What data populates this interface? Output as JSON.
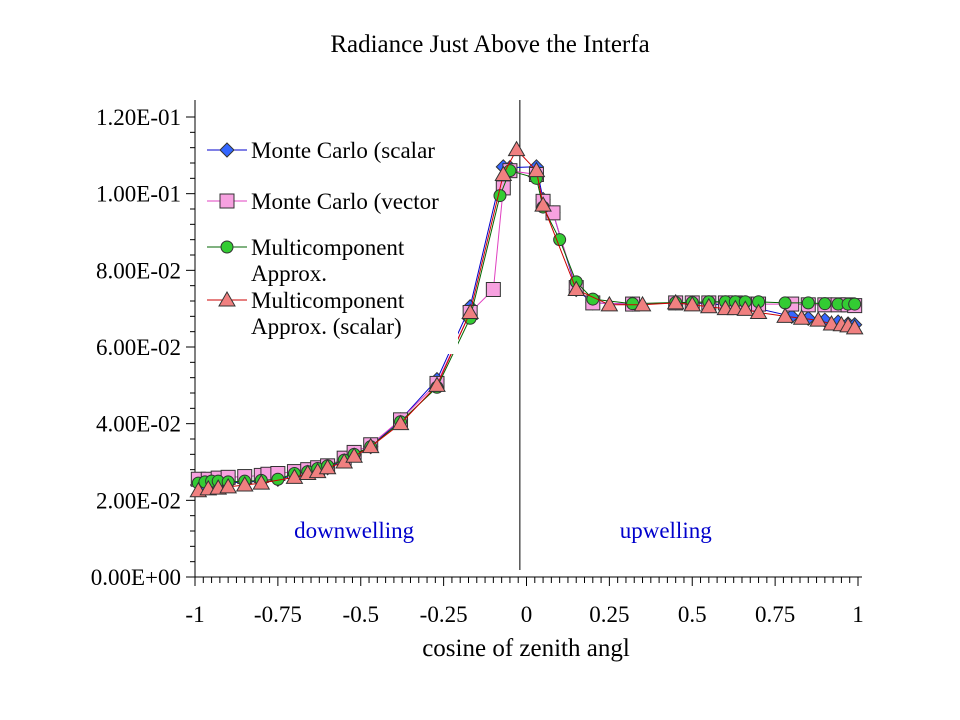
{
  "chart_data": {
    "type": "line",
    "title": "Radiance Just Above the Interfa",
    "xlabel": "cosine of zenith angl",
    "ylabel": "",
    "xlim": [
      -1,
      1
    ],
    "ylim": [
      0,
      0.12
    ],
    "x_ticks": [
      "-1",
      "-0.75",
      "-0.5",
      "-0.25",
      "0",
      "0.25",
      "0.5",
      "0.75",
      "1"
    ],
    "x_tick_values": [
      -1,
      -0.75,
      -0.5,
      -0.25,
      0,
      0.25,
      0.5,
      0.75,
      1
    ],
    "y_ticks": [
      "0.00E+00",
      "2.00E-02",
      "4.00E-02",
      "6.00E-02",
      "8.00E-02",
      "1.00E-01",
      "1.20E-01"
    ],
    "y_tick_values": [
      0,
      0.02,
      0.04,
      0.06,
      0.08,
      0.1,
      0.12
    ],
    "grid": false,
    "legend_position": "top-left",
    "annotations": [
      {
        "text": "downwelling",
        "x": -0.52,
        "y": 0.01
      },
      {
        "text": "upwelling",
        "x": 0.42,
        "y": 0.01
      }
    ],
    "vertical_line_x": -0.02,
    "series": [
      {
        "name": "Monte Carlo (scalar",
        "marker": "diamond",
        "color": "#3366ff",
        "line_color": "#0000cc",
        "x": [
          -0.98,
          -0.96,
          -0.93,
          -0.9,
          -0.85,
          -0.8,
          -0.75,
          -0.7,
          -0.66,
          -0.63,
          -0.6,
          -0.55,
          -0.52,
          -0.47,
          -0.38,
          -0.27,
          -0.17,
          -0.07,
          -0.05,
          0.03,
          0.05,
          0.08,
          0.15,
          0.2,
          0.32,
          0.45,
          0.5,
          0.55,
          0.6,
          0.63,
          0.66,
          0.7,
          0.8,
          0.85,
          0.9,
          0.94,
          0.97,
          0.99
        ],
        "values": [
          0.0235,
          0.024,
          0.0242,
          0.0245,
          0.0248,
          0.025,
          0.0255,
          0.0265,
          0.0275,
          0.028,
          0.0285,
          0.0305,
          0.032,
          0.034,
          0.041,
          0.0515,
          0.0705,
          0.107,
          0.1068,
          0.107,
          0.0985,
          0.095,
          0.075,
          0.0715,
          0.0712,
          0.0715,
          0.0715,
          0.0712,
          0.071,
          0.0708,
          0.0705,
          0.07,
          0.068,
          0.0675,
          0.067,
          0.0665,
          0.066,
          0.0658
        ]
      },
      {
        "name": "Monte Carlo (vector",
        "marker": "square",
        "color": "#f7a1e0",
        "line_color": "#e040c0",
        "x": [
          -0.99,
          -0.96,
          -0.93,
          -0.9,
          -0.85,
          -0.8,
          -0.78,
          -0.75,
          -0.7,
          -0.66,
          -0.63,
          -0.6,
          -0.55,
          -0.52,
          -0.47,
          -0.38,
          -0.27,
          -0.17,
          -0.1,
          -0.07,
          -0.05,
          0.03,
          0.05,
          0.08,
          0.15,
          0.2,
          0.32,
          0.45,
          0.5,
          0.55,
          0.6,
          0.63,
          0.66,
          0.7,
          0.8,
          0.85,
          0.9,
          0.94,
          0.97,
          0.99
        ],
        "values": [
          0.0255,
          0.0255,
          0.0258,
          0.026,
          0.0262,
          0.0265,
          0.0268,
          0.027,
          0.0275,
          0.028,
          0.0285,
          0.029,
          0.031,
          0.0325,
          0.0345,
          0.041,
          0.0505,
          0.069,
          0.075,
          0.1015,
          0.106,
          0.105,
          0.098,
          0.095,
          0.0755,
          0.0715,
          0.0712,
          0.0715,
          0.0715,
          0.0715,
          0.0715,
          0.0715,
          0.0712,
          0.0712,
          0.0712,
          0.071,
          0.071,
          0.071,
          0.071,
          0.0708
        ]
      },
      {
        "name": "Multicomponent Approx.",
        "marker": "circle",
        "color": "#33cc33",
        "line_color": "#006600",
        "x": [
          -0.99,
          -0.97,
          -0.95,
          -0.93,
          -0.9,
          -0.85,
          -0.8,
          -0.75,
          -0.7,
          -0.66,
          -0.63,
          -0.6,
          -0.55,
          -0.52,
          -0.47,
          -0.38,
          -0.27,
          -0.17,
          -0.08,
          -0.05,
          0.03,
          0.05,
          0.1,
          0.15,
          0.2,
          0.32,
          0.45,
          0.5,
          0.55,
          0.6,
          0.63,
          0.66,
          0.7,
          0.78,
          0.85,
          0.9,
          0.94,
          0.97,
          0.99
        ],
        "values": [
          0.0245,
          0.0248,
          0.025,
          0.025,
          0.0248,
          0.025,
          0.0252,
          0.0255,
          0.027,
          0.0275,
          0.0283,
          0.029,
          0.0305,
          0.032,
          0.034,
          0.0405,
          0.0495,
          0.0675,
          0.0995,
          0.106,
          0.104,
          0.0965,
          0.088,
          0.077,
          0.0725,
          0.0713,
          0.0716,
          0.0716,
          0.0718,
          0.0718,
          0.0718,
          0.0718,
          0.0718,
          0.0715,
          0.0715,
          0.0713,
          0.0712,
          0.0712,
          0.0712
        ]
      },
      {
        "name": "Multicomponent Approx. (scalar)",
        "marker": "triangle",
        "color": "#f08080",
        "line_color": "#cc0000",
        "x": [
          -0.99,
          -0.96,
          -0.93,
          -0.9,
          -0.85,
          -0.8,
          -0.7,
          -0.66,
          -0.63,
          -0.6,
          -0.55,
          -0.52,
          -0.47,
          -0.38,
          -0.27,
          -0.17,
          -0.07,
          -0.03,
          0.03,
          0.05,
          0.15,
          0.25,
          0.35,
          0.45,
          0.5,
          0.55,
          0.6,
          0.63,
          0.66,
          0.7,
          0.78,
          0.83,
          0.88,
          0.92,
          0.95,
          0.97,
          0.99
        ],
        "values": [
          0.0225,
          0.023,
          0.0232,
          0.0235,
          0.024,
          0.0245,
          0.026,
          0.027,
          0.0275,
          0.0285,
          0.03,
          0.0315,
          0.034,
          0.04,
          0.05,
          0.069,
          0.105,
          0.1115,
          0.106,
          0.097,
          0.075,
          0.071,
          0.071,
          0.0715,
          0.071,
          0.0705,
          0.07,
          0.07,
          0.0698,
          0.069,
          0.068,
          0.0675,
          0.067,
          0.066,
          0.0658,
          0.0655,
          0.065
        ]
      }
    ]
  }
}
